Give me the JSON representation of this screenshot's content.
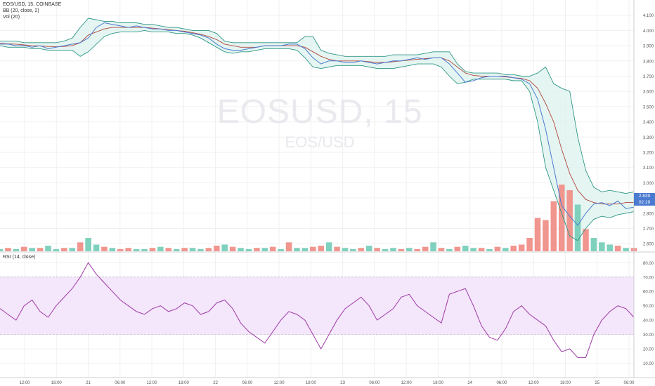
{
  "watermark": {
    "symbol": "EOSUSD, 15",
    "pair": "EOS/USD"
  },
  "legend": {
    "main": "EOS/USD, 15, COINBASE",
    "bb": "BB (20, close, 2)",
    "vol": "Vol (20)",
    "rsi": "RSI (14, close)"
  },
  "last_price": {
    "value": "2.839",
    "countdown": "02:19"
  },
  "colors": {
    "price": "#4a7bd0",
    "basis": "#b2473e",
    "bands": "#2e9685",
    "band_fill": "#def3ef",
    "vol_up": "#7fd1bd",
    "vol_down": "#f1958f",
    "rsi_line": "#9e3aa6",
    "rsi_band": "#f4e6fb",
    "grid": "#f0f0f0",
    "axis_text": "#555555"
  },
  "chart_data": [
    {
      "type": "line",
      "symbol": "EOS/USD",
      "exchange": "COINBASE",
      "interval": "15",
      "ylim": [
        2.55,
        4.2
      ],
      "y_ticks": [
        "4.100",
        "4.000",
        "3.900",
        "3.800",
        "3.700",
        "3.600",
        "3.500",
        "3.400",
        "3.300",
        "3.200",
        "3.100",
        "3.000",
        "2.900",
        "2.800",
        "2.700",
        "2.600"
      ],
      "x_ticks": [
        "12:00",
        "18:00",
        "21",
        "06:00",
        "12:00",
        "18:00",
        "22",
        "06:00",
        "12:00",
        "18:00",
        "23",
        "06:00",
        "12:00",
        "18:00",
        "24",
        "06:00",
        "12:00",
        "18:00",
        "25",
        "06:00"
      ],
      "close": [
        3.91,
        3.91,
        3.9,
        3.9,
        3.89,
        3.9,
        3.88,
        3.89,
        3.9,
        3.91,
        3.92,
        3.95,
        4.02,
        4.05,
        4.04,
        4.03,
        4.02,
        4.03,
        4.02,
        4.01,
        4.01,
        4.0,
        4.0,
        3.99,
        3.98,
        3.97,
        3.95,
        3.91,
        3.88,
        3.87,
        3.87,
        3.88,
        3.89,
        3.9,
        3.9,
        3.9,
        3.91,
        3.91,
        3.88,
        3.82,
        3.78,
        3.8,
        3.8,
        3.79,
        3.79,
        3.8,
        3.79,
        3.78,
        3.79,
        3.8,
        3.8,
        3.81,
        3.82,
        3.81,
        3.82,
        3.82,
        3.78,
        3.72,
        3.66,
        3.67,
        3.69,
        3.7,
        3.7,
        3.7,
        3.69,
        3.68,
        3.65,
        3.55,
        3.35,
        3.1,
        2.85,
        2.78,
        2.72,
        2.8,
        2.86,
        2.87,
        2.85,
        2.88,
        2.83,
        2.84
      ],
      "upper_band": [
        3.93,
        3.93,
        3.93,
        3.92,
        3.92,
        3.92,
        3.92,
        3.92,
        3.93,
        3.95,
        4.02,
        4.08,
        4.07,
        4.06,
        4.06,
        4.05,
        4.05,
        4.05,
        4.04,
        4.04,
        4.03,
        4.02,
        4.02,
        4.01,
        4.0,
        4.0,
        4.0,
        3.98,
        3.93,
        3.92,
        3.92,
        3.92,
        3.92,
        3.92,
        3.92,
        3.92,
        3.92,
        3.92,
        3.96,
        3.96,
        3.87,
        3.85,
        3.84,
        3.83,
        3.83,
        3.83,
        3.83,
        3.83,
        3.83,
        3.84,
        3.84,
        3.84,
        3.84,
        3.85,
        3.86,
        3.86,
        3.86,
        3.78,
        3.73,
        3.72,
        3.72,
        3.72,
        3.72,
        3.71,
        3.71,
        3.7,
        3.7,
        3.72,
        3.76,
        3.65,
        3.62,
        3.6,
        3.3,
        3.08,
        2.97,
        2.94,
        2.95,
        2.94,
        2.93,
        2.94
      ],
      "basis": [
        3.915,
        3.912,
        3.91,
        3.905,
        3.9,
        3.898,
        3.895,
        3.893,
        3.895,
        3.9,
        3.92,
        3.97,
        3.99,
        4.01,
        4.02,
        4.02,
        4.02,
        4.02,
        4.02,
        4.015,
        4.01,
        4.005,
        4.0,
        3.995,
        3.985,
        3.975,
        3.96,
        3.94,
        3.91,
        3.9,
        3.89,
        3.89,
        3.89,
        3.9,
        3.9,
        3.9,
        3.9,
        3.9,
        3.89,
        3.86,
        3.83,
        3.81,
        3.8,
        3.8,
        3.8,
        3.8,
        3.795,
        3.79,
        3.79,
        3.795,
        3.8,
        3.805,
        3.81,
        3.815,
        3.82,
        3.82,
        3.8,
        3.76,
        3.72,
        3.705,
        3.7,
        3.7,
        3.7,
        3.695,
        3.69,
        3.685,
        3.67,
        3.62,
        3.52,
        3.4,
        3.22,
        3.06,
        2.95,
        2.89,
        2.87,
        2.86,
        2.86,
        2.86,
        2.87,
        2.87
      ],
      "lower_band": [
        3.9,
        3.89,
        3.89,
        3.89,
        3.88,
        3.88,
        3.87,
        3.87,
        3.87,
        3.87,
        3.83,
        3.86,
        3.91,
        3.96,
        3.98,
        3.99,
        3.99,
        3.99,
        4.0,
        3.99,
        3.99,
        3.99,
        3.98,
        3.98,
        3.97,
        3.95,
        3.92,
        3.89,
        3.86,
        3.85,
        3.86,
        3.86,
        3.87,
        3.88,
        3.88,
        3.88,
        3.88,
        3.87,
        3.82,
        3.76,
        3.75,
        3.76,
        3.77,
        3.77,
        3.77,
        3.77,
        3.76,
        3.75,
        3.75,
        3.75,
        3.76,
        3.77,
        3.78,
        3.78,
        3.78,
        3.76,
        3.7,
        3.65,
        3.66,
        3.68,
        3.68,
        3.68,
        3.68,
        3.68,
        3.67,
        3.67,
        3.6,
        3.4,
        3.1,
        2.95,
        2.8,
        2.65,
        2.62,
        2.7,
        2.76,
        2.78,
        2.77,
        2.79,
        2.8,
        2.81
      ],
      "volume": [
        2,
        3,
        2,
        4,
        3,
        3,
        5,
        2,
        3,
        3,
        8,
        12,
        6,
        4,
        3,
        2,
        3,
        2,
        2,
        3,
        4,
        3,
        2,
        3,
        3,
        2,
        3,
        5,
        6,
        4,
        3,
        2,
        3,
        3,
        4,
        2,
        8,
        3,
        3,
        4,
        5,
        8,
        4,
        3,
        2,
        3,
        5,
        3,
        2,
        3,
        2,
        3,
        2,
        4,
        8,
        3,
        2,
        4,
        5,
        3,
        3,
        2,
        4,
        3,
        5,
        6,
        12,
        30,
        28,
        45,
        60,
        55,
        42,
        20,
        12,
        8,
        6,
        5,
        3,
        3
      ],
      "volume_up": [
        1,
        0,
        1,
        0,
        1,
        0,
        1,
        1,
        0,
        1,
        0,
        1,
        1,
        0,
        1,
        0,
        0,
        1,
        1,
        0,
        1,
        0,
        1,
        0,
        1,
        1,
        0,
        0,
        1,
        0,
        1,
        1,
        0,
        1,
        0,
        1,
        0,
        1,
        1,
        0,
        0,
        1,
        0,
        1,
        1,
        0,
        1,
        0,
        1,
        1,
        0,
        1,
        0,
        0,
        1,
        0,
        1,
        0,
        1,
        1,
        0,
        1,
        0,
        1,
        0,
        0,
        0,
        0,
        0,
        0,
        0,
        0,
        1,
        0,
        1,
        1,
        1,
        0,
        1,
        0
      ]
    },
    {
      "type": "line",
      "title": "RSI (14, close)",
      "ylim": [
        0,
        87
      ],
      "y_ticks": [
        "80.00",
        "70.00",
        "60.00",
        "50.00",
        "40.00",
        "30.00",
        "20.00",
        "10.00"
      ],
      "band": [
        30,
        70
      ],
      "values": [
        48,
        44,
        40,
        50,
        54,
        46,
        42,
        50,
        56,
        62,
        70,
        80,
        72,
        66,
        60,
        54,
        50,
        46,
        44,
        48,
        50,
        46,
        48,
        52,
        50,
        44,
        46,
        52,
        54,
        48,
        38,
        32,
        28,
        24,
        32,
        40,
        46,
        44,
        40,
        30,
        20,
        30,
        40,
        48,
        52,
        56,
        50,
        40,
        44,
        48,
        56,
        58,
        50,
        46,
        42,
        38,
        58,
        60,
        62,
        50,
        36,
        28,
        26,
        34,
        46,
        50,
        44,
        40,
        36,
        26,
        18,
        20,
        14,
        14,
        30,
        40,
        46,
        50,
        48,
        42
      ]
    }
  ]
}
